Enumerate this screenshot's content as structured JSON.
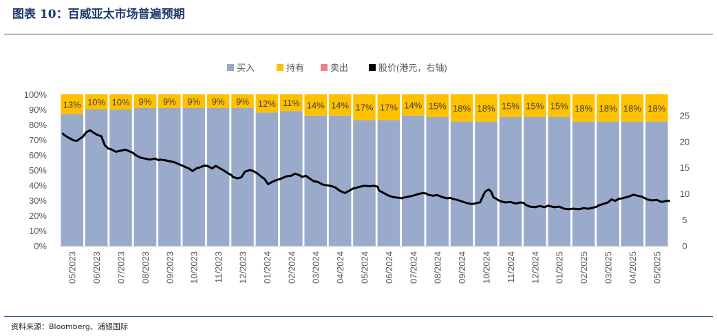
{
  "figure": {
    "title": "图表 10：百威亚太市场普遍预期",
    "source": "资料来源：Bloomberg、浦银国际"
  },
  "chart_data": {
    "type": "bar",
    "stacked": true,
    "categories": [
      "05/2023",
      "06/2023",
      "07/2023",
      "08/2023",
      "09/2023",
      "10/2023",
      "11/2023",
      "12/2023",
      "01/2024",
      "02/2024",
      "03/2024",
      "04/2024",
      "05/2024",
      "06/2024",
      "07/2024",
      "08/2024",
      "09/2024",
      "10/2024",
      "11/2024",
      "12/2024",
      "01/2025",
      "02/2025",
      "03/2025",
      "04/2025",
      "05/2025"
    ],
    "series": [
      {
        "name": "买入",
        "color": "#9aaacb",
        "values": [
          87,
          90,
          90,
          91,
          91,
          91,
          91,
          91,
          88,
          89,
          86,
          86,
          83,
          83,
          86,
          85,
          82,
          82,
          85,
          85,
          85,
          82,
          82,
          82,
          82
        ]
      },
      {
        "name": "持有",
        "color": "#ffc000",
        "values": [
          13,
          10,
          10,
          9,
          9,
          9,
          9,
          9,
          12,
          11,
          14,
          14,
          17,
          17,
          14,
          15,
          18,
          18,
          15,
          15,
          15,
          18,
          18,
          18,
          18
        ]
      },
      {
        "name": "卖出",
        "color": "#f08080",
        "values": [
          0,
          0,
          0,
          0,
          0,
          0,
          0,
          0,
          0,
          0,
          0,
          0,
          0,
          0,
          0,
          0,
          0,
          0,
          0,
          0,
          0,
          0,
          0,
          0,
          0
        ]
      }
    ],
    "data_labels": [
      "13%",
      "10%",
      "10%",
      "9%",
      "9%",
      "9%",
      "9%",
      "9%",
      "12%",
      "11%",
      "14%",
      "14%",
      "17%",
      "17%",
      "14%",
      "15%",
      "18%",
      "18%",
      "15%",
      "15%",
      "15%",
      "18%",
      "18%",
      "18%",
      "18%"
    ],
    "line_series": {
      "name": "股价(港元，右轴)",
      "color": "#000000",
      "axis": "right",
      "points": [
        [
          0,
          21.6
        ],
        [
          0.08,
          21.2
        ],
        [
          0.18,
          20.9
        ],
        [
          0.3,
          20.6
        ],
        [
          0.45,
          20.2
        ],
        [
          0.6,
          20.1
        ],
        [
          0.75,
          20.6
        ],
        [
          0.85,
          20.9
        ],
        [
          1.0,
          21.8
        ],
        [
          1.15,
          22.1
        ],
        [
          1.3,
          21.6
        ],
        [
          1.45,
          21.2
        ],
        [
          1.6,
          21.0
        ],
        [
          1.75,
          19.2
        ],
        [
          1.9,
          18.6
        ],
        [
          2.0,
          18.5
        ],
        [
          2.2,
          18.0
        ],
        [
          2.4,
          18.2
        ],
        [
          2.6,
          18.4
        ],
        [
          2.75,
          18.1
        ],
        [
          2.9,
          17.8
        ],
        [
          3.0,
          17.4
        ],
        [
          3.2,
          16.9
        ],
        [
          3.4,
          16.7
        ],
        [
          3.6,
          16.5
        ],
        [
          3.8,
          16.7
        ],
        [
          3.95,
          16.4
        ],
        [
          4.0,
          16.5
        ],
        [
          4.2,
          16.4
        ],
        [
          4.4,
          16.2
        ],
        [
          4.6,
          16.0
        ],
        [
          4.8,
          15.6
        ],
        [
          4.95,
          15.3
        ],
        [
          5.0,
          15.2
        ],
        [
          5.2,
          14.8
        ],
        [
          5.35,
          14.3
        ],
        [
          5.5,
          14.8
        ],
        [
          5.7,
          15.1
        ],
        [
          5.85,
          15.4
        ],
        [
          6.0,
          15.2
        ],
        [
          6.15,
          14.8
        ],
        [
          6.3,
          15.3
        ],
        [
          6.45,
          14.9
        ],
        [
          6.6,
          14.5
        ],
        [
          6.8,
          13.9
        ],
        [
          6.95,
          13.5
        ],
        [
          7.0,
          13.2
        ],
        [
          7.2,
          12.9
        ],
        [
          7.35,
          13.1
        ],
        [
          7.5,
          14.2
        ],
        [
          7.7,
          14.5
        ],
        [
          7.85,
          14.3
        ],
        [
          7.95,
          14.0
        ],
        [
          8.0,
          13.9
        ],
        [
          8.15,
          13.3
        ],
        [
          8.3,
          12.8
        ],
        [
          8.45,
          11.8
        ],
        [
          8.6,
          12.2
        ],
        [
          8.8,
          12.6
        ],
        [
          8.95,
          12.8
        ],
        [
          9.0,
          12.9
        ],
        [
          9.2,
          13.3
        ],
        [
          9.4,
          13.4
        ],
        [
          9.55,
          13.8
        ],
        [
          9.7,
          13.6
        ],
        [
          9.85,
          13.2
        ],
        [
          10.0,
          13.4
        ],
        [
          10.15,
          12.9
        ],
        [
          10.3,
          12.4
        ],
        [
          10.5,
          12.2
        ],
        [
          10.7,
          11.7
        ],
        [
          10.85,
          11.6
        ],
        [
          11.0,
          11.5
        ],
        [
          11.2,
          11.2
        ],
        [
          11.4,
          10.5
        ],
        [
          11.6,
          10.1
        ],
        [
          11.8,
          10.6
        ],
        [
          11.95,
          11.0
        ],
        [
          12.0,
          11.0
        ],
        [
          12.2,
          11.3
        ],
        [
          12.4,
          11.5
        ],
        [
          12.6,
          11.4
        ],
        [
          12.8,
          11.5
        ],
        [
          12.95,
          11.3
        ],
        [
          13.0,
          10.6
        ],
        [
          13.2,
          10.1
        ],
        [
          13.4,
          9.6
        ],
        [
          13.6,
          9.3
        ],
        [
          13.8,
          9.2
        ],
        [
          13.95,
          9.1
        ],
        [
          14.0,
          9.2
        ],
        [
          14.2,
          9.4
        ],
        [
          14.4,
          9.6
        ],
        [
          14.6,
          9.9
        ],
        [
          14.8,
          10.1
        ],
        [
          14.95,
          10.0
        ],
        [
          15.0,
          9.8
        ],
        [
          15.2,
          9.6
        ],
        [
          15.4,
          9.7
        ],
        [
          15.6,
          9.3
        ],
        [
          15.8,
          9.1
        ],
        [
          15.95,
          9.2
        ],
        [
          16.0,
          9.0
        ],
        [
          16.2,
          8.8
        ],
        [
          16.4,
          8.5
        ],
        [
          16.6,
          8.2
        ],
        [
          16.8,
          8.0
        ],
        [
          16.95,
          8.1
        ],
        [
          17.0,
          8.2
        ],
        [
          17.15,
          8.3
        ],
        [
          17.25,
          9.3
        ],
        [
          17.35,
          10.3
        ],
        [
          17.5,
          10.8
        ],
        [
          17.6,
          10.4
        ],
        [
          17.7,
          9.3
        ],
        [
          17.85,
          8.9
        ],
        [
          18.0,
          8.5
        ],
        [
          18.2,
          8.3
        ],
        [
          18.4,
          8.4
        ],
        [
          18.6,
          8.1
        ],
        [
          18.8,
          8.3
        ],
        [
          18.95,
          8.2
        ],
        [
          19.0,
          7.9
        ],
        [
          19.2,
          7.5
        ],
        [
          19.4,
          7.4
        ],
        [
          19.6,
          7.6
        ],
        [
          19.8,
          7.4
        ],
        [
          19.95,
          7.7
        ],
        [
          20.0,
          7.6
        ],
        [
          20.2,
          7.4
        ],
        [
          20.4,
          7.5
        ],
        [
          20.6,
          7.1
        ],
        [
          20.8,
          7.0
        ],
        [
          20.95,
          7.1
        ],
        [
          21.0,
          7.1
        ],
        [
          21.2,
          7.0
        ],
        [
          21.4,
          7.2
        ],
        [
          21.6,
          7.1
        ],
        [
          21.8,
          7.3
        ],
        [
          21.95,
          7.5
        ],
        [
          22.0,
          7.7
        ],
        [
          22.2,
          8.0
        ],
        [
          22.4,
          8.3
        ],
        [
          22.55,
          8.9
        ],
        [
          22.7,
          8.6
        ],
        [
          22.85,
          9.0
        ],
        [
          23.0,
          9.1
        ],
        [
          23.15,
          9.3
        ],
        [
          23.3,
          9.5
        ],
        [
          23.45,
          9.8
        ],
        [
          23.6,
          9.6
        ],
        [
          23.8,
          9.4
        ],
        [
          24.0,
          8.9
        ],
        [
          24.2,
          8.7
        ],
        [
          24.4,
          8.8
        ],
        [
          24.6,
          8.4
        ],
        [
          24.8,
          8.6
        ],
        [
          24.95,
          8.6
        ]
      ]
    },
    "y_left": {
      "min": 0,
      "max": 100,
      "step": 10,
      "tick_labels": [
        "0%",
        "10%",
        "20%",
        "30%",
        "40%",
        "50%",
        "60%",
        "70%",
        "80%",
        "90%",
        "100%"
      ]
    },
    "y_right": {
      "min": 0,
      "max": 29,
      "ticks": [
        0,
        5,
        10,
        15,
        20,
        25
      ],
      "tick_labels": [
        "0",
        "5",
        "10",
        "15",
        "20",
        "25"
      ]
    },
    "legend": {
      "position": "top",
      "items": [
        "买入",
        "持有",
        "卖出",
        "股价(港元，右轴)"
      ]
    },
    "grid": false
  }
}
